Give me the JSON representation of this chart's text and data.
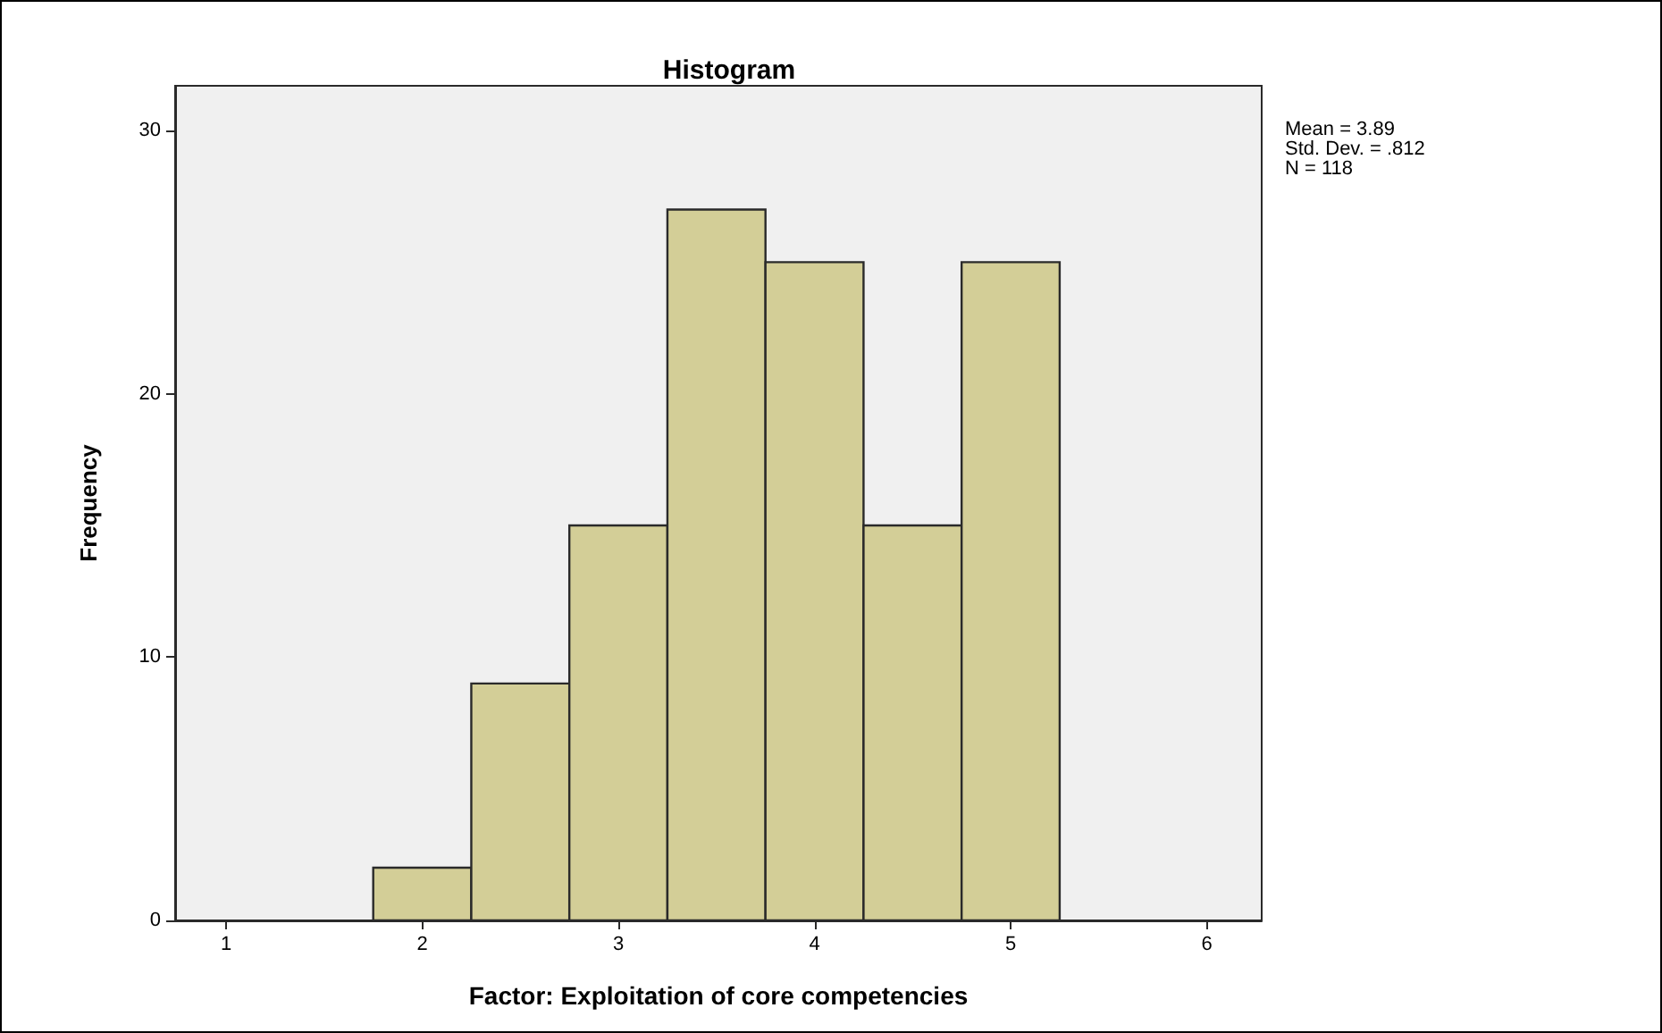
{
  "chart_data": {
    "type": "histogram",
    "title": "Histogram",
    "xlabel": "Factor: Exploitation of core competencies",
    "ylabel": "Frequency",
    "bins": [
      1.75,
      2.25,
      2.75,
      3.25,
      3.75,
      4.25,
      4.75,
      5.25
    ],
    "values": [
      2,
      9,
      15,
      27,
      25,
      15,
      25
    ],
    "color": "#d3ce97",
    "xlim": [
      0.74,
      6.28
    ],
    "xticks": [
      1,
      2,
      3,
      4,
      5,
      6
    ],
    "ylim": [
      0,
      31.7
    ],
    "yticks": [
      0,
      10,
      20,
      30
    ],
    "grid": false,
    "annotations": [
      "Mean = 3.89\nStd. Dev. = .812\nN = 118"
    ]
  }
}
